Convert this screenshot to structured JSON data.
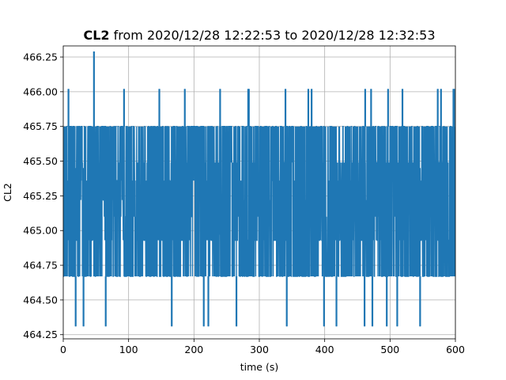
{
  "chart_data": {
    "type": "line",
    "title_bold": "CL2",
    "title_rest": " from 2020/12/28 12:22:53 to 2020/12/28 12:32:53",
    "xlabel": "time (s)",
    "ylabel": "CL2",
    "xlim": [
      0,
      600
    ],
    "ylim": [
      464.22,
      466.33
    ],
    "xticks": [
      0,
      100,
      200,
      300,
      400,
      500,
      600
    ],
    "yticks": [
      "464.25",
      "464.50",
      "464.75",
      "465.00",
      "465.25",
      "465.50",
      "465.75",
      "466.00",
      "466.25"
    ],
    "grid": true,
    "series_color": "#1f77b4",
    "series": [
      {
        "levels": [
          464.31,
          464.67,
          464.93,
          465.1,
          465.22,
          465.36,
          465.49,
          465.75,
          466.02,
          466.29
        ],
        "band_low": 464.67,
        "band_high": 465.75,
        "spike_high": [
          [
            8,
            466.02
          ],
          [
            47,
            466.29
          ],
          [
            93,
            466.02
          ],
          [
            147,
            466.02
          ],
          [
            186,
            466.02
          ],
          [
            240,
            466.02
          ],
          [
            283,
            466.02
          ],
          [
            284,
            466.02
          ],
          [
            340,
            466.02
          ],
          [
            375,
            466.02
          ],
          [
            380,
            466.02
          ],
          [
            462,
            466.02
          ],
          [
            471,
            466.02
          ],
          [
            497,
            466.02
          ],
          [
            519,
            466.02
          ],
          [
            573,
            466.02
          ],
          [
            578,
            466.02
          ],
          [
            597,
            466.02
          ],
          [
            598,
            466.02
          ]
        ],
        "spike_low": [
          [
            19,
            464.31
          ],
          [
            31,
            464.31
          ],
          [
            65,
            464.31
          ],
          [
            166,
            464.31
          ],
          [
            215,
            464.31
          ],
          [
            222,
            464.31
          ],
          [
            265,
            464.31
          ],
          [
            342,
            464.31
          ],
          [
            399,
            464.31
          ],
          [
            418,
            464.31
          ],
          [
            461,
            464.31
          ],
          [
            473,
            464.31
          ],
          [
            495,
            464.31
          ],
          [
            511,
            464.31
          ],
          [
            546,
            464.31
          ]
        ],
        "gaps_top": [
          [
            30,
            32
          ],
          [
            81,
            83
          ],
          [
            110,
            112
          ],
          [
            113,
            115
          ],
          [
            231,
            233
          ],
          [
            330,
            332
          ],
          [
            462,
            464
          ],
          [
            470,
            472
          ],
          [
            497,
            499
          ]
        ],
        "gaps_bottom": [
          [
            19,
            21
          ],
          [
            43,
            46
          ],
          [
            62,
            66
          ],
          [
            90,
            92
          ],
          [
            122,
            126
          ],
          [
            150,
            152
          ],
          [
            166,
            168
          ],
          [
            180,
            182
          ],
          [
            219,
            223
          ],
          [
            226,
            228
          ],
          [
            263,
            267
          ],
          [
            295,
            298
          ],
          [
            322,
            325
          ],
          [
            340,
            343
          ],
          [
            392,
            396
          ],
          [
            422,
            425
          ],
          [
            455,
            458
          ],
          [
            478,
            481
          ],
          [
            510,
            512
          ],
          [
            545,
            549
          ],
          [
            572,
            574
          ]
        ]
      }
    ]
  }
}
